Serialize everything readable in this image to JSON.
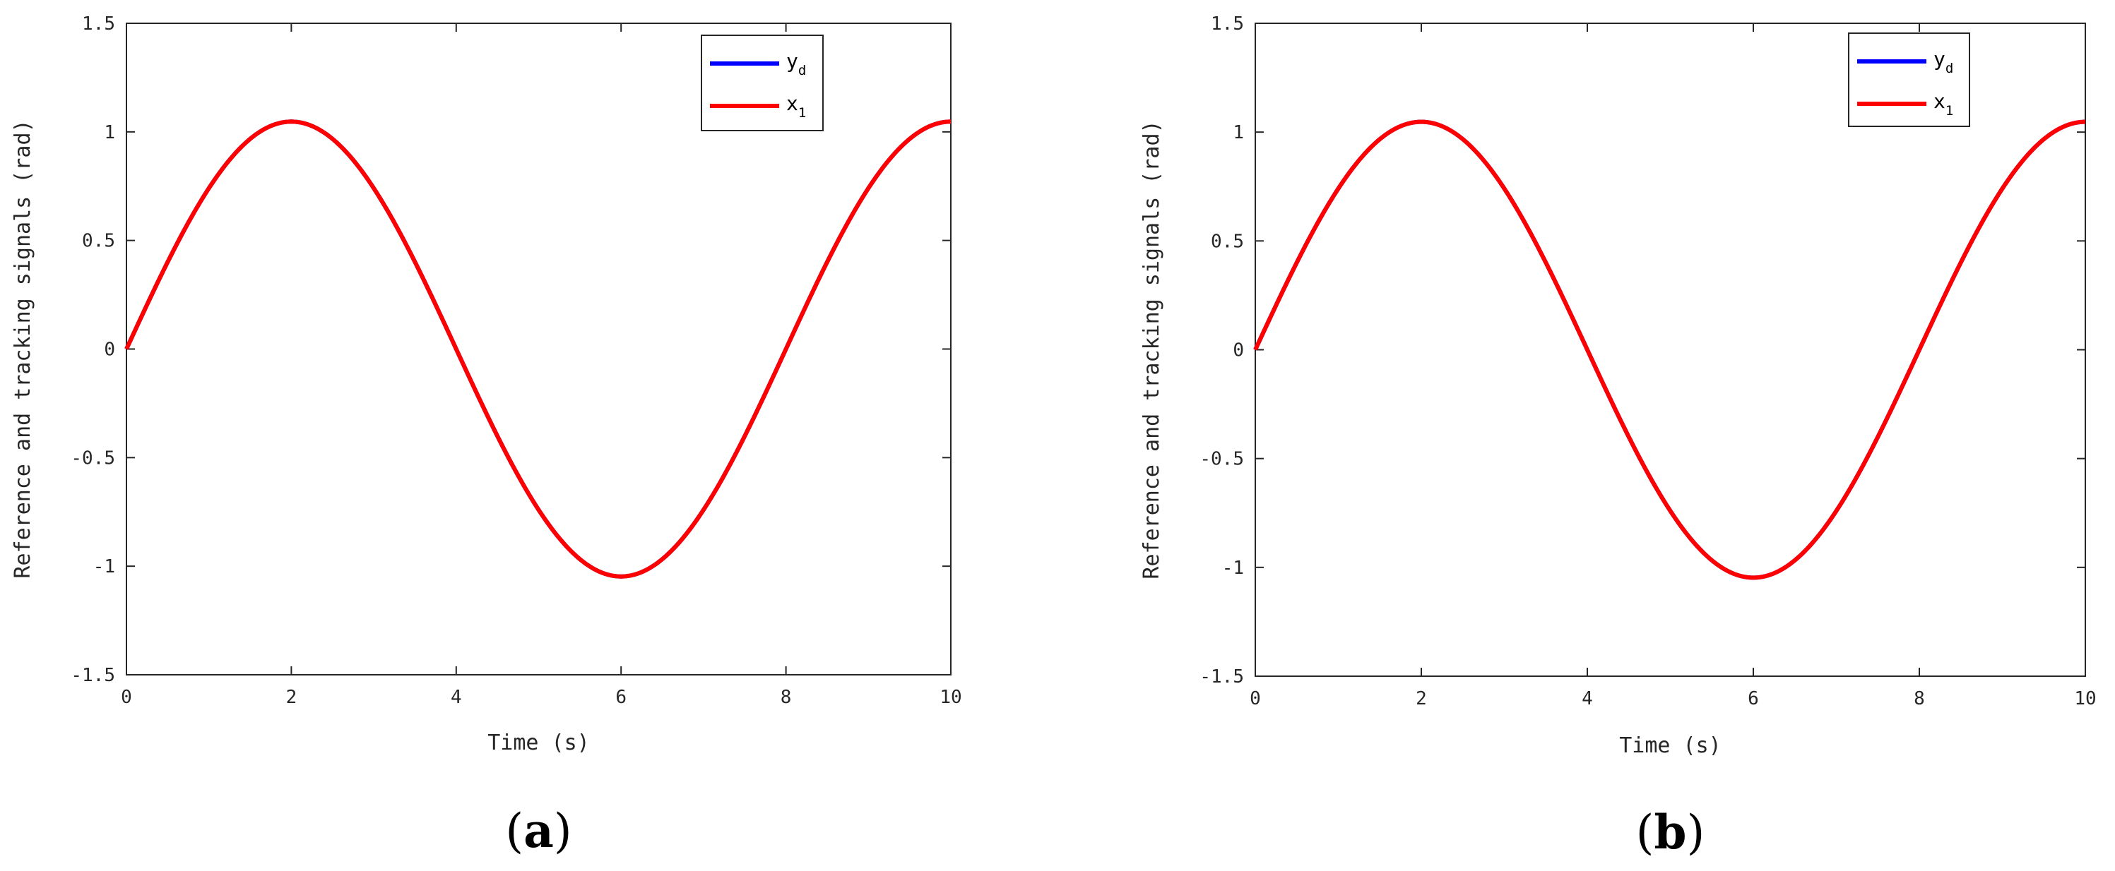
{
  "colors": {
    "y_d": "#0000ff",
    "x_1": "#ff0000"
  },
  "chart_data": [
    {
      "type": "line",
      "panel_label": "a",
      "xlabel": "Time (s)",
      "ylabel": "Reference and tracking signals (rad)",
      "xlim": [
        0,
        10
      ],
      "ylim": [
        -1.5,
        1.5
      ],
      "xticks": [
        0,
        2,
        4,
        6,
        8,
        10
      ],
      "xtick_labels": [
        "0",
        "2",
        "4",
        "6",
        "8",
        "10"
      ],
      "yticks": [
        -1.5,
        -1,
        -0.5,
        0,
        0.5,
        1,
        1.5
      ],
      "ytick_labels": [
        "-1.5",
        "-1",
        "-0.5",
        "0",
        "0.5",
        "1",
        "1.5"
      ],
      "grid": false,
      "legend_position": "top-right",
      "series": [
        {
          "name": "y",
          "subscript": "d",
          "color": "#0000ff",
          "amplitude": 1.0472,
          "period": 8
        },
        {
          "name": "x",
          "subscript": "1",
          "color": "#ff0000",
          "amplitude": 1.0472,
          "period": 8
        }
      ],
      "x": [
        0,
        0.5,
        1,
        1.5,
        2,
        2.5,
        3,
        3.5,
        4,
        4.5,
        5,
        5.5,
        6,
        6.5,
        7,
        7.5,
        8,
        8.5,
        9,
        9.5,
        10
      ],
      "values": [
        0,
        0.4,
        0.74,
        0.97,
        1.05,
        0.97,
        0.74,
        0.4,
        0,
        -0.4,
        -0.74,
        -0.97,
        -1.05,
        -0.97,
        -0.74,
        -0.4,
        0,
        0.4,
        0.74,
        0.97,
        1.05
      ]
    },
    {
      "type": "line",
      "panel_label": "b",
      "xlabel": "Time (s)",
      "ylabel": "Reference and tracking signals (rad)",
      "xlim": [
        0,
        10
      ],
      "ylim": [
        -1.5,
        1.5
      ],
      "xticks": [
        0,
        2,
        4,
        6,
        8,
        10
      ],
      "xtick_labels": [
        "0",
        "2",
        "4",
        "6",
        "8",
        "10"
      ],
      "yticks": [
        -1.5,
        -1,
        -0.5,
        0,
        0.5,
        1,
        1.5
      ],
      "ytick_labels": [
        "-1.5",
        "-1",
        "-0.5",
        "0",
        "0.5",
        "1",
        "1.5"
      ],
      "grid": false,
      "legend_position": "top-right",
      "series": [
        {
          "name": "y",
          "subscript": "d",
          "color": "#0000ff",
          "amplitude": 1.0472,
          "period": 8
        },
        {
          "name": "x",
          "subscript": "1",
          "color": "#ff0000",
          "amplitude": 1.0472,
          "period": 8
        }
      ]
    }
  ]
}
